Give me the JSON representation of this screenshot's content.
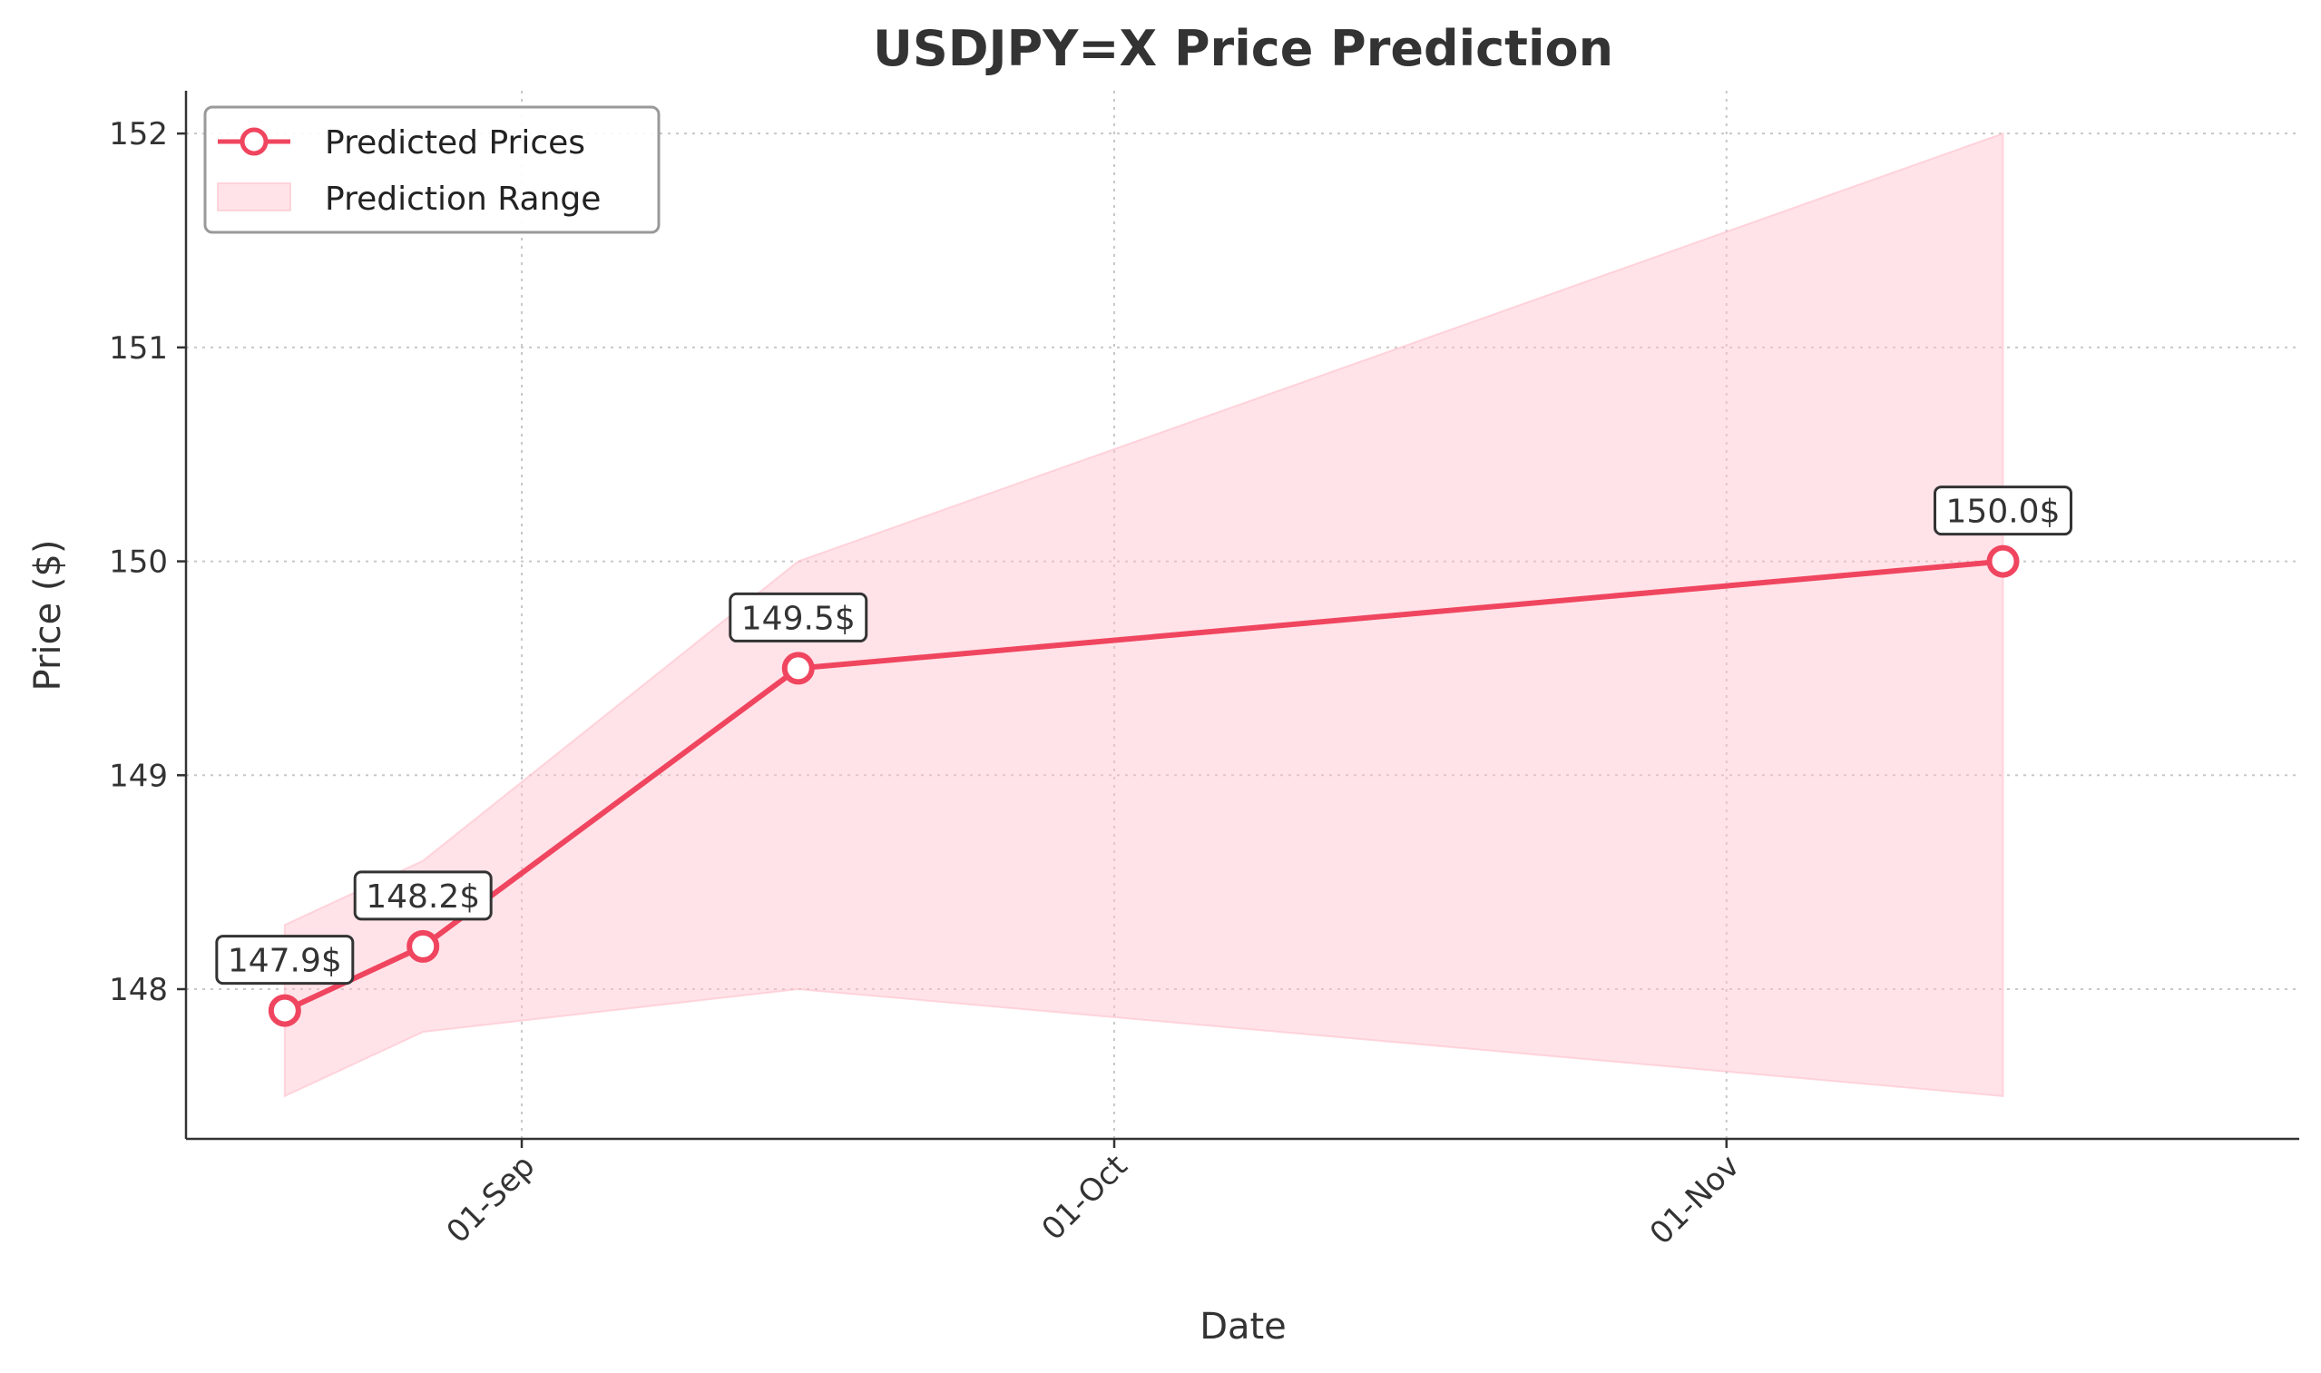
{
  "chart_data": {
    "type": "line",
    "title": "USDJPY=X Price Prediction",
    "xlabel": "Date",
    "ylabel": "Price ($)",
    "x": [
      "2024-08-20",
      "2024-08-27",
      "2024-09-15",
      "2024-11-15"
    ],
    "series": [
      {
        "name": "Predicted Prices",
        "values": [
          147.9,
          148.2,
          149.5,
          150.0
        ],
        "color": "#f0455f"
      }
    ],
    "range": {
      "name": "Prediction Range",
      "lower": [
        147.5,
        147.8,
        148.0,
        147.5
      ],
      "upper": [
        148.3,
        148.6,
        150.0,
        152.0
      ],
      "color": "#ffc0cb"
    },
    "annotations": [
      "147.9$",
      "148.2$",
      "149.5$",
      "150.0$"
    ],
    "xticks": [
      {
        "date": "2024-09-01",
        "label": "01-Sep"
      },
      {
        "date": "2024-10-01",
        "label": "01-Oct"
      },
      {
        "date": "2024-11-01",
        "label": "01-Nov"
      }
    ],
    "yticks": [
      148,
      149,
      150,
      151,
      152
    ],
    "xlim": [
      "2024-08-15",
      "2024-11-30"
    ],
    "ylim": [
      147.3,
      152.2
    ],
    "grid": true,
    "legend": "top-left"
  }
}
